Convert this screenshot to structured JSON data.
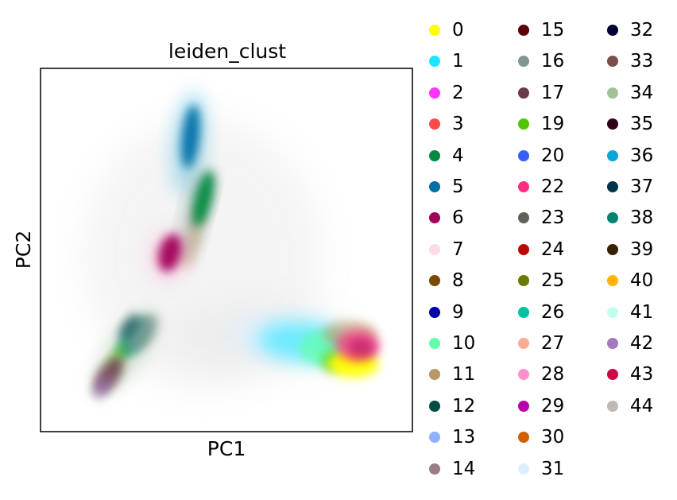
{
  "chart_data": {
    "type": "scatter",
    "title": "leiden_clust",
    "xlabel": "PC1",
    "ylabel": "PC2",
    "grid": false,
    "show_ticks": false,
    "legend_position": "right",
    "clusters": [
      {
        "label": "0",
        "color": "#ffff00"
      },
      {
        "label": "1",
        "color": "#1ce6ff"
      },
      {
        "label": "2",
        "color": "#ff34ff"
      },
      {
        "label": "3",
        "color": "#ff4a46"
      },
      {
        "label": "4",
        "color": "#008941"
      },
      {
        "label": "5",
        "color": "#006fa6"
      },
      {
        "label": "6",
        "color": "#a30059"
      },
      {
        "label": "7",
        "color": "#ffdbe5"
      },
      {
        "label": "8",
        "color": "#7a4900"
      },
      {
        "label": "9",
        "color": "#0000a6"
      },
      {
        "label": "10",
        "color": "#63ffac"
      },
      {
        "label": "11",
        "color": "#b79762"
      },
      {
        "label": "12",
        "color": "#004d43"
      },
      {
        "label": "13",
        "color": "#8fb0ff"
      },
      {
        "label": "14",
        "color": "#997d87"
      },
      {
        "label": "15",
        "color": "#5a0007"
      },
      {
        "label": "16",
        "color": "#809693"
      },
      {
        "label": "17",
        "color": "#6a3a4c"
      },
      {
        "label": "19",
        "color": "#4fc601"
      },
      {
        "label": "20",
        "color": "#3b5dff"
      },
      {
        "label": "22",
        "color": "#ff2f80"
      },
      {
        "label": "23",
        "color": "#61615a"
      },
      {
        "label": "24",
        "color": "#ba0900"
      },
      {
        "label": "25",
        "color": "#6b7900"
      },
      {
        "label": "26",
        "color": "#00c2a0"
      },
      {
        "label": "27",
        "color": "#ffaa92"
      },
      {
        "label": "28",
        "color": "#ff90c9"
      },
      {
        "label": "29",
        "color": "#b903aa"
      },
      {
        "label": "30",
        "color": "#d16100"
      },
      {
        "label": "31",
        "color": "#ddefff"
      },
      {
        "label": "32",
        "color": "#000035"
      },
      {
        "label": "33",
        "color": "#7b4f4b"
      },
      {
        "label": "34",
        "color": "#a1c299"
      },
      {
        "label": "35",
        "color": "#300018"
      },
      {
        "label": "36",
        "color": "#0aa6d8"
      },
      {
        "label": "37",
        "color": "#013349"
      },
      {
        "label": "38",
        "color": "#00846f"
      },
      {
        "label": "39",
        "color": "#372101"
      },
      {
        "label": "40",
        "color": "#ffb500"
      },
      {
        "label": "41",
        "color": "#c2ffed"
      },
      {
        "label": "42",
        "color": "#a079bf"
      },
      {
        "label": "43",
        "color": "#cc0744"
      },
      {
        "label": "44",
        "color": "#c0b9b2"
      }
    ]
  }
}
